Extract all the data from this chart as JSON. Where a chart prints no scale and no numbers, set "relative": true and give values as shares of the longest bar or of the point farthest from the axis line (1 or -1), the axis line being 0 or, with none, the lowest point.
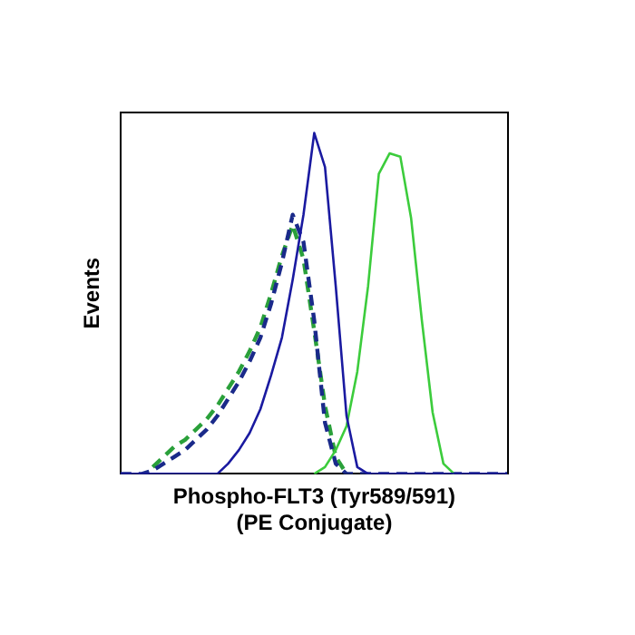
{
  "chart_data": {
    "type": "line",
    "xlabel": "Phospho-FLT3 (Tyr589/591)\n(PE Conjugate)",
    "ylabel": "Events",
    "relative": true,
    "grid": false,
    "legend": false,
    "tick_labels": false,
    "marker": "none",
    "categories": [
      null,
      null,
      null,
      null,
      null,
      null,
      null,
      null,
      null,
      null,
      null,
      null,
      null,
      null,
      null,
      null,
      null,
      null,
      null,
      null,
      null,
      null,
      null,
      null,
      null,
      null,
      null,
      null,
      null,
      null,
      null,
      null,
      null,
      null,
      null,
      null,
      null
    ],
    "series": [
      {
        "color": "#1a1aa0",
        "line_style": "solid",
        "values": [
          0,
          0,
          0,
          0,
          0,
          0,
          0,
          0,
          0,
          0,
          0.03,
          0.07,
          0.12,
          0.19,
          0.29,
          0.4,
          0.57,
          0.76,
          1,
          0.9,
          0.55,
          0.17,
          0.02,
          0,
          0,
          0,
          0,
          0,
          0,
          0,
          0,
          0,
          0,
          0,
          0,
          0,
          0
        ]
      },
      {
        "color": "#3ccc3c",
        "line_style": "solid",
        "values": [
          null,
          null,
          null,
          null,
          null,
          null,
          null,
          null,
          null,
          null,
          null,
          null,
          null,
          null,
          null,
          null,
          null,
          null,
          0,
          0.02,
          0.07,
          0.14,
          0.3,
          0.55,
          0.88,
          0.94,
          0.93,
          0.75,
          0.45,
          0.18,
          0.03,
          0,
          null,
          null,
          null,
          null,
          null
        ]
      },
      {
        "color": "#1a2a8a",
        "line_style": "dashed",
        "values": [
          0,
          0,
          0,
          0.01,
          0.03,
          0.05,
          0.07,
          0.1,
          0.13,
          0.17,
          0.22,
          0.27,
          0.33,
          0.4,
          0.5,
          0.62,
          0.76,
          0.68,
          0.45,
          0.15,
          0.03,
          0,
          0,
          0,
          0,
          0,
          0,
          0,
          0,
          0,
          0,
          0,
          0,
          0,
          0,
          0,
          0
        ]
      },
      {
        "color": "#2aa03a",
        "line_style": "dashed",
        "values": [
          null,
          null,
          null,
          0.02,
          0.05,
          0.08,
          0.1,
          0.13,
          0.16,
          0.2,
          0.25,
          0.3,
          0.36,
          0.43,
          0.53,
          0.64,
          0.73,
          0.63,
          0.42,
          0.2,
          0.05,
          0,
          null,
          null,
          null,
          null,
          null,
          null,
          null,
          null,
          null,
          null,
          null,
          null,
          null,
          null,
          null
        ]
      }
    ]
  }
}
